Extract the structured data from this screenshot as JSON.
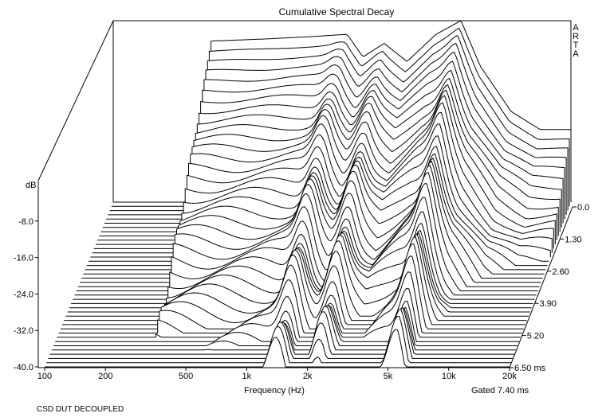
{
  "chart_data": {
    "type": "waterfall",
    "title": "Cumulative Spectral Decay",
    "watermark": "ARTA",
    "xlabel": "Frequency (Hz)",
    "ylabel": "dB",
    "zlabel": "",
    "x_scale": "log",
    "xlim": [
      100,
      20000
    ],
    "x_ticks": [
      {
        "value": 100,
        "label": "100"
      },
      {
        "value": 200,
        "label": "200"
      },
      {
        "value": 500,
        "label": "500"
      },
      {
        "value": 1000,
        "label": "1k"
      },
      {
        "value": 2000,
        "label": "2k"
      },
      {
        "value": 5000,
        "label": "5k"
      },
      {
        "value": 10000,
        "label": "10k"
      },
      {
        "value": 20000,
        "label": "20k"
      }
    ],
    "ylim": [
      -40,
      0
    ],
    "y_ticks": [
      {
        "value": -8,
        "label": "-8.0"
      },
      {
        "value": -16,
        "label": "-16.0"
      },
      {
        "value": -24,
        "label": "-24.0"
      },
      {
        "value": -32,
        "label": "-32.0"
      },
      {
        "value": -40,
        "label": "-40.0"
      }
    ],
    "time_unit": "ms",
    "tlim": [
      0,
      6.5
    ],
    "t_ticks": [
      {
        "value": 0.0,
        "label": "0.0"
      },
      {
        "value": 1.3,
        "label": "1.30"
      },
      {
        "value": 2.6,
        "label": "2.60"
      },
      {
        "value": 3.9,
        "label": "3.90"
      },
      {
        "value": 5.2,
        "label": "5.20"
      },
      {
        "value": 6.5,
        "label": "6.50 ms"
      }
    ],
    "slices": 40,
    "gate_note": "Gated 7.40 ms",
    "x_start_hz": 310,
    "decay_model": {
      "base_response": [
        {
          "f": 310,
          "db": -4.5
        },
        {
          "f": 600,
          "db": -4.0
        },
        {
          "f": 1000,
          "db": -3.5
        },
        {
          "f": 1500,
          "db": -3.0
        },
        {
          "f": 1800,
          "db": -8.0
        },
        {
          "f": 2300,
          "db": -5.0
        },
        {
          "f": 3000,
          "db": -9.0
        },
        {
          "f": 4200,
          "db": -3.0
        },
        {
          "f": 5600,
          "db": 0.0
        },
        {
          "f": 7000,
          "db": -10.0
        },
        {
          "f": 10000,
          "db": -20.0
        },
        {
          "f": 14000,
          "db": -24.0
        },
        {
          "f": 19000,
          "db": -24.0
        }
      ],
      "resonances": [
        {
          "f": 1400,
          "db": -18.0
        },
        {
          "f": 2200,
          "db": -21.0
        },
        {
          "f": 5500,
          "db": -5.0
        }
      ]
    }
  },
  "footer": "CSD DUT DECOUPLED"
}
